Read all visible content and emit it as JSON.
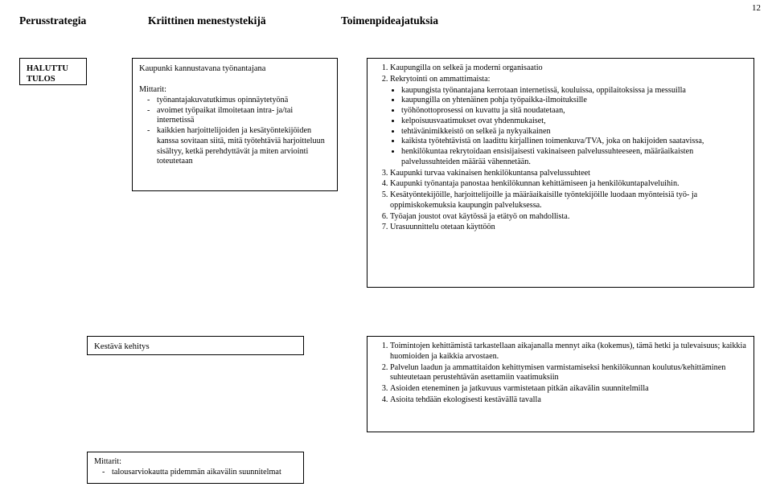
{
  "pageNumber": "12",
  "headers": {
    "c1": "Perusstrategia",
    "c2": "Kriittinen menestystekijä",
    "c3": "Toimenpideajatuksia"
  },
  "haluttu": {
    "l1": "HALUTTU",
    "l2": "TULOS"
  },
  "center1": {
    "title": "Kaupunki kannustavana työnantajana",
    "mittarit": "Mittarit:",
    "items": [
      "työnantajakuvatutkimus opinnäytetyönä",
      "avoimet työpaikat ilmoitetaan intra- ja/tai internetissä",
      "kaikkien harjoittelijoiden ja kesätyöntekijöiden kanssa sovitaan siitä, mitä työtehtäviä harjoitteluun sisältyy, ketkä perehdyttävät ja miten arviointi toteutetaan"
    ]
  },
  "right1": {
    "n1": "Kaupungilla on selkeä  ja moderni organisaatio",
    "n2": "Rekrytointi on ammattimaista:",
    "n2bul": [
      "kaupungista työnantajana kerrotaan internetissä, kouluissa, oppilaitoksissa ja messuilla",
      "kaupungilla on yhtenäinen pohja työpaikka-ilmoituksille",
      "työhönottoprosessi on kuvattu ja sitä noudatetaan,",
      "kelpoisuusvaatimukset ovat yhdenmukaiset,",
      "tehtävänimikkeistö on selkeä ja nykyaikainen",
      "kaikista työtehtävistä on laadittu kirjallinen toimenkuva/TVA, joka on hakijoiden saatavissa,",
      "henkilökuntaa rekrytoidaan ensisijaisesti vakinaiseen palvelussuhteeseen, määräaikaisten palvelussuhteiden määrää vähennetään."
    ],
    "n3": "Kaupunki turvaa vakinaisen henkilökuntansa palvelussuhteet",
    "n4": "Kaupunki työnantaja panostaa henkilökunnan kehittämiseen ja henkilökuntapalveluihin.",
    "n5": "Kesätyöntekijöille, harjoittelijoille ja määräaikaisille työntekijöille luodaan myönteisiä työ- ja oppimiskokemuksia  kaupungin  palveluksessa.",
    "n6": "Työajan joustot ovat käytössä ja etätyö on mahdollista.",
    "n7": "Urasuunnittelu otetaan käyttöön"
  },
  "kk": {
    "title": "Kestävä kehitys"
  },
  "right2": {
    "n1": "Toimintojen kehittämistä tarkastellaan aikajanalla mennyt aika (kokemus), tämä hetki ja tulevaisuus; kaikkia huomioiden ja kaikkia arvostaen.",
    "n2": "Palvelun laadun ja ammattitaidon kehittymisen varmistamiseksi henkilökunnan koulutus/kehittäminen suhteutetaan perustehtävän asettamiin vaatimuksiin",
    "n3": "Asioiden eteneminen ja jatkuvuus varmistetaan pitkän aikavälin suunnitelmilla",
    "n4": "Asioita tehdään ekologisesti kestävällä tavalla"
  },
  "mitt": {
    "title": "Mittarit:",
    "d1": "talousarviokautta pidemmän aikavälin suunnitelmat"
  }
}
